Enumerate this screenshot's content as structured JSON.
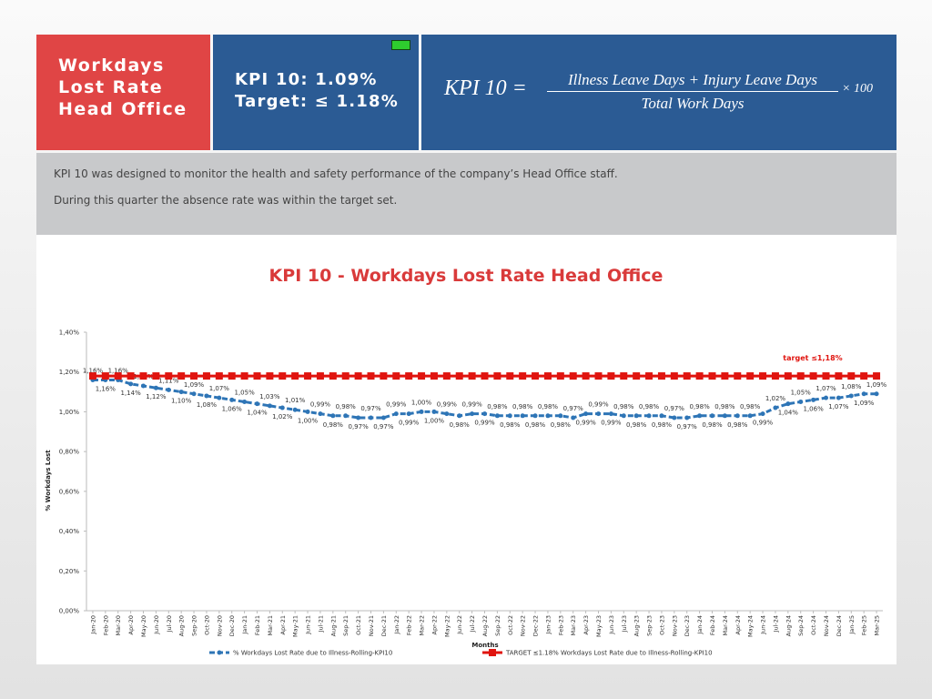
{
  "header": {
    "title_lines": [
      "Workdays",
      "Lost Rate",
      "Head Office"
    ],
    "kpi_lines": [
      "KPI 10: 1.09%",
      "Target: ≤ 1.18%"
    ],
    "formula": {
      "lhs": "KPI  10  =",
      "numerator": "Illness Leave Days + Injury Leave Days",
      "denominator": "Total Work Days",
      "factor": "× 100"
    }
  },
  "description": [
    "KPI 10 was designed to monitor the health and safety performance of the company’s Head Office staff.",
    "During this quarter the absence rate was within the target set."
  ],
  "chart_data": {
    "type": "line",
    "title": "KPI 10 - Workdays Lost  Rate Head Office",
    "x_label": "Months",
    "y_label": "% Workdays Lost",
    "annotation": "target ≤1,18%",
    "categories": [
      "Jan-20",
      "Feb-20",
      "Mar-20",
      "Apr-20",
      "May-20",
      "Jun-20",
      "Jul-20",
      "Aug-20",
      "Sep-20",
      "Oct-20",
      "Nov-20",
      "Dec-20",
      "Jan-21",
      "Feb-21",
      "Mar-21",
      "Apr-21",
      "May-21",
      "Jun-21",
      "Jul-21",
      "Aug-21",
      "Sep-21",
      "Oct-21",
      "Nov-21",
      "Dec-21",
      "Jan-22",
      "Feb-22",
      "Mar-22",
      "Apr-22",
      "May-22",
      "Jun-22",
      "Jul-22",
      "Aug-22",
      "Sep-22",
      "Oct-22",
      "Nov-22",
      "Dec-22",
      "Jan-23",
      "Feb-23",
      "Mar-23",
      "Apr-23",
      "May-23",
      "Jun-23",
      "Jul-23",
      "Aug-23",
      "Sep-23",
      "Oct-23",
      "Nov-23",
      "Dec-23",
      "Jan-24",
      "Feb-24",
      "Mar-24",
      "Apr-24",
      "May-24",
      "Jun-24",
      "Jul-24",
      "Aug-24",
      "Sep-24",
      "Oct-24",
      "Nov-24",
      "Dec-24",
      "Jan-25",
      "Feb-25",
      "Mar-25"
    ],
    "series": [
      {
        "name": "% Workdays Lost Rate due to Illness-Rolling-KPI10",
        "color": "#2e75b6",
        "marker": "circle",
        "dashed": true,
        "values": [
          1.16,
          1.16,
          1.16,
          1.14,
          1.13,
          1.12,
          1.11,
          1.1,
          1.09,
          1.08,
          1.07,
          1.06,
          1.05,
          1.04,
          1.03,
          1.02,
          1.01,
          1.0,
          0.99,
          0.98,
          0.98,
          0.97,
          0.97,
          0.97,
          0.99,
          0.99,
          1.0,
          1.0,
          0.99,
          0.98,
          0.99,
          0.99,
          0.98,
          0.98,
          0.98,
          0.98,
          0.98,
          0.98,
          0.97,
          0.99,
          0.99,
          0.99,
          0.98,
          0.98,
          0.98,
          0.98,
          0.97,
          0.97,
          0.98,
          0.98,
          0.98,
          0.98,
          0.98,
          0.99,
          1.02,
          1.04,
          1.05,
          1.06,
          1.07,
          1.07,
          1.08,
          1.09,
          1.09
        ],
        "value_labels": [
          "1,16%",
          "1,16%",
          "1,16%",
          "1,14%",
          "1,13%",
          "1,12%",
          "1,11%",
          "1,10%",
          "1,09%",
          "1,08%",
          "1,07%",
          "1,06%",
          "1,05%",
          "1,04%",
          "1,03%",
          "1,02%",
          "1,01%",
          "1,00%",
          "0,99%",
          "0,98%",
          "0,98%",
          "0,97%",
          "0,97%",
          "0,97%",
          "0,99%",
          "0,99%",
          "1,00%",
          "1,00%",
          "0,99%",
          "0,98%",
          "0,99%",
          "0,99%",
          "0,98%",
          "0,98%",
          "0,98%",
          "0,98%",
          "0,98%",
          "0,98%",
          "0,97%",
          "0,99%",
          "0,99%",
          "0,99%",
          "0,98%",
          "0,98%",
          "0,98%",
          "0,98%",
          "0,97%",
          "0,97%",
          "0,98%",
          "0,98%",
          "0,98%",
          "0,98%",
          "0,98%",
          "0,99%",
          "1,02%",
          "1,04%",
          "1,05%",
          "1,06%",
          "1,07%",
          "1,07%",
          "1,08%",
          "1,09%",
          "1,09%"
        ]
      },
      {
        "name": "TARGET ≤1.18% Workdays Lost Rate due to Illness-Rolling-KPI10",
        "color": "#e0140f",
        "marker": "square",
        "dashed": false,
        "values": [
          1.18,
          1.18,
          1.18,
          1.18,
          1.18,
          1.18,
          1.18,
          1.18,
          1.18,
          1.18,
          1.18,
          1.18,
          1.18,
          1.18,
          1.18,
          1.18,
          1.18,
          1.18,
          1.18,
          1.18,
          1.18,
          1.18,
          1.18,
          1.18,
          1.18,
          1.18,
          1.18,
          1.18,
          1.18,
          1.18,
          1.18,
          1.18,
          1.18,
          1.18,
          1.18,
          1.18,
          1.18,
          1.18,
          1.18,
          1.18,
          1.18,
          1.18,
          1.18,
          1.18,
          1.18,
          1.18,
          1.18,
          1.18,
          1.18,
          1.18,
          1.18,
          1.18,
          1.18,
          1.18,
          1.18,
          1.18,
          1.18,
          1.18,
          1.18,
          1.18,
          1.18,
          1.18,
          1.18
        ]
      }
    ],
    "ylim": [
      0,
      1.4
    ],
    "yticks": [
      {
        "value": 0,
        "label": "0,00%"
      },
      {
        "value": 0.2,
        "label": "0,20%"
      },
      {
        "value": 0.4,
        "label": "0,40%"
      },
      {
        "value": 0.6,
        "label": "0,60%"
      },
      {
        "value": 0.8,
        "label": "0,80%"
      },
      {
        "value": 1.0,
        "label": "1,00%"
      },
      {
        "value": 1.2,
        "label": "1,20%"
      },
      {
        "value": 1.4,
        "label": "1,40%"
      }
    ],
    "grid": false
  }
}
